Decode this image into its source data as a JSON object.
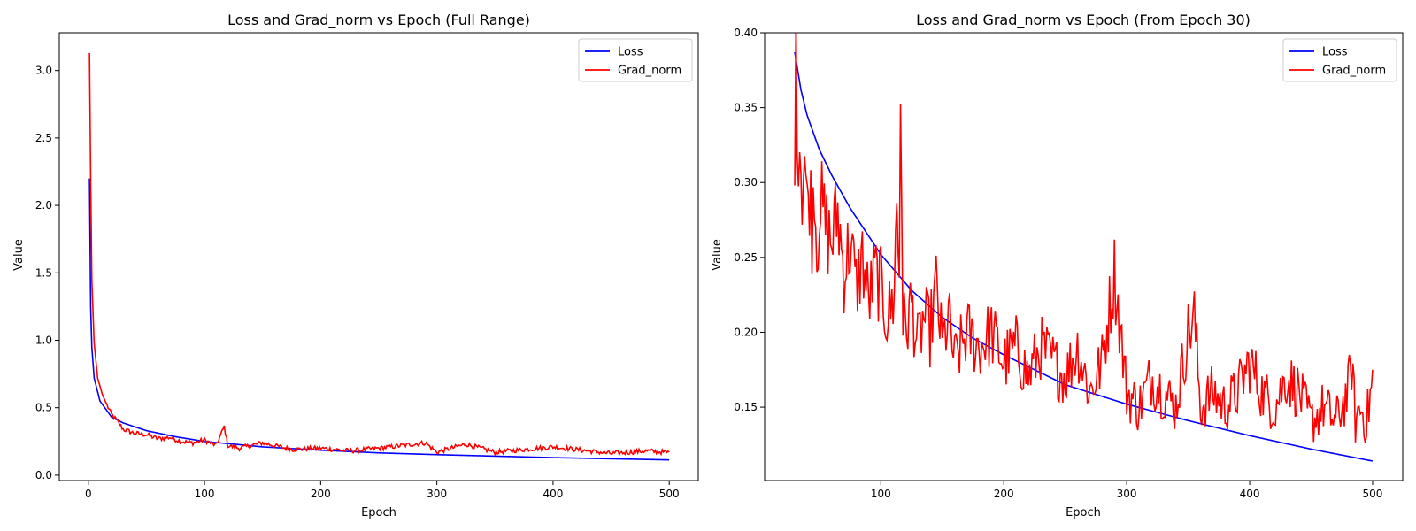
{
  "colors": {
    "loss": "#0000ff",
    "grad_norm": "#ff0000",
    "axis": "#000000",
    "legend_frame": "#cccccc"
  },
  "chart_data": [
    {
      "type": "line",
      "title": "Loss and Grad_norm vs Epoch (Full Range)",
      "xlabel": "Epoch",
      "ylabel": "Value",
      "xlim": [
        -25,
        525
      ],
      "ylim": [
        -0.04,
        3.28
      ],
      "xticks": [
        0,
        100,
        200,
        300,
        400,
        500
      ],
      "yticks": [
        0.0,
        0.5,
        1.0,
        1.5,
        2.0,
        2.5,
        3.0
      ],
      "ytick_labels": [
        "0.0",
        "0.5",
        "1.0",
        "1.5",
        "2.0",
        "2.5",
        "3.0"
      ],
      "grid": false,
      "legend": "top-right",
      "x_start": 1,
      "x_end": 500,
      "series": [
        {
          "name": "Loss",
          "color": "#0000ff",
          "x": [
            1,
            2,
            3,
            5,
            10,
            20,
            30,
            50,
            75,
            100,
            150,
            200,
            250,
            300,
            400,
            500
          ],
          "values": [
            2.2,
            1.25,
            0.95,
            0.72,
            0.55,
            0.43,
            0.387,
            0.33,
            0.285,
            0.25,
            0.21,
            0.185,
            0.165,
            0.152,
            0.13,
            0.113
          ]
        },
        {
          "name": "Grad_norm",
          "color": "#ff0000",
          "x": [
            1,
            2,
            3,
            5,
            8,
            12,
            16,
            20,
            25,
            30,
            40,
            50,
            60,
            70,
            80,
            90,
            100,
            110,
            117,
            120,
            130,
            150,
            175,
            200,
            225,
            250,
            290,
            300,
            325,
            350,
            400,
            450,
            480,
            500
          ],
          "values": [
            3.13,
            2.2,
            1.45,
            0.98,
            0.72,
            0.6,
            0.52,
            0.45,
            0.4,
            0.34,
            0.31,
            0.3,
            0.27,
            0.28,
            0.25,
            0.24,
            0.26,
            0.22,
            0.36,
            0.22,
            0.2,
            0.24,
            0.19,
            0.2,
            0.18,
            0.2,
            0.24,
            0.17,
            0.23,
            0.17,
            0.21,
            0.16,
            0.18,
            0.168
          ]
        }
      ]
    },
    {
      "type": "line",
      "title": "Loss and Grad_norm vs Epoch (From Epoch 30)",
      "xlabel": "Epoch",
      "ylabel": "Value",
      "xlim": [
        5.5,
        524.5
      ],
      "ylim": [
        0.101,
        0.4
      ],
      "xticks": [
        100,
        200,
        300,
        400,
        500
      ],
      "yticks": [
        0.15,
        0.2,
        0.25,
        0.3,
        0.35,
        0.4
      ],
      "ytick_labels": [
        "0.15",
        "0.20",
        "0.25",
        "0.30",
        "0.35",
        "0.40"
      ],
      "grid": false,
      "legend": "top-right",
      "x_start": 30,
      "x_end": 500,
      "series": [
        {
          "name": "Loss",
          "color": "#0000ff",
          "x": [
            30,
            35,
            40,
            50,
            60,
            75,
            100,
            125,
            150,
            175,
            200,
            250,
            300,
            350,
            400,
            450,
            500
          ],
          "values": [
            0.387,
            0.362,
            0.345,
            0.322,
            0.305,
            0.283,
            0.252,
            0.228,
            0.21,
            0.196,
            0.185,
            0.165,
            0.152,
            0.141,
            0.131,
            0.122,
            0.114
          ]
        },
        {
          "name": "Grad_norm",
          "color": "#ff0000",
          "x": [
            30,
            31,
            32,
            34,
            36,
            38,
            40,
            42,
            44,
            46,
            48,
            50,
            55,
            60,
            65,
            70,
            75,
            80,
            85,
            90,
            95,
            100,
            105,
            110,
            113,
            115,
            116,
            117,
            118,
            120,
            125,
            130,
            135,
            140,
            145,
            150,
            155,
            160,
            170,
            180,
            190,
            200,
            210,
            220,
            230,
            240,
            250,
            260,
            270,
            280,
            290,
            300,
            310,
            320,
            330,
            340,
            350,
            355,
            360,
            370,
            380,
            390,
            400,
            410,
            420,
            430,
            440,
            450,
            460,
            470,
            480,
            483,
            486,
            490,
            495,
            500
          ],
          "values": [
            0.335,
            0.374,
            0.345,
            0.33,
            0.3,
            0.32,
            0.28,
            0.3,
            0.27,
            0.31,
            0.25,
            0.29,
            0.27,
            0.26,
            0.28,
            0.24,
            0.26,
            0.23,
            0.25,
            0.22,
            0.24,
            0.23,
            0.21,
            0.22,
            0.28,
            0.24,
            0.36,
            0.3,
            0.21,
            0.2,
            0.22,
            0.19,
            0.21,
            0.2,
            0.23,
            0.19,
            0.21,
            0.18,
            0.2,
            0.19,
            0.2,
            0.18,
            0.19,
            0.17,
            0.19,
            0.18,
            0.17,
            0.19,
            0.16,
            0.18,
            0.24,
            0.16,
            0.15,
            0.17,
            0.16,
            0.15,
            0.2,
            0.21,
            0.15,
            0.16,
            0.15,
            0.16,
            0.18,
            0.16,
            0.15,
            0.17,
            0.16,
            0.14,
            0.15,
            0.14,
            0.16,
            0.18,
            0.14,
            0.15,
            0.14,
            0.168
          ]
        }
      ]
    }
  ]
}
